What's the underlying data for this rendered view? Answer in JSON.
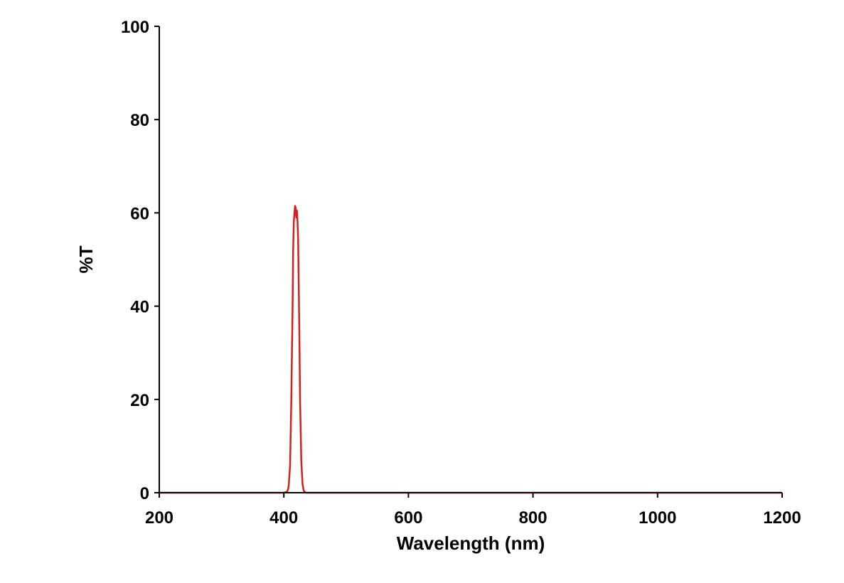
{
  "chart_data": {
    "type": "line",
    "title": "",
    "xlabel": "Wavelength (nm)",
    "ylabel": "%T",
    "xlim": [
      200,
      1200
    ],
    "ylim": [
      0,
      100
    ],
    "x_ticks": [
      200,
      400,
      600,
      800,
      1000,
      1200
    ],
    "y_ticks": [
      0,
      20,
      40,
      60,
      80,
      100
    ],
    "x_tick_labels": [
      "200",
      "400",
      "600",
      "800",
      "1000",
      "1200"
    ],
    "y_tick_labels": [
      "0",
      "20",
      "40",
      "60",
      "80",
      "100"
    ],
    "grid": false,
    "legend": "none",
    "series": [
      {
        "color": "#d42020",
        "x": [
          200,
          400,
          405,
          407,
          408,
          410,
          412,
          414,
          415,
          416,
          417,
          418,
          419,
          420,
          421,
          422,
          423,
          424,
          425,
          426,
          428,
          430,
          432,
          435,
          450,
          600,
          800,
          1000,
          1200
        ],
        "y": [
          0,
          0,
          0.2,
          0.8,
          1.8,
          6,
          20,
          40,
          52,
          58,
          60,
          61.5,
          61,
          59,
          60.5,
          58,
          54,
          44,
          33,
          20,
          7,
          1.8,
          0.4,
          0,
          0,
          0,
          0,
          0,
          0
        ]
      }
    ]
  }
}
